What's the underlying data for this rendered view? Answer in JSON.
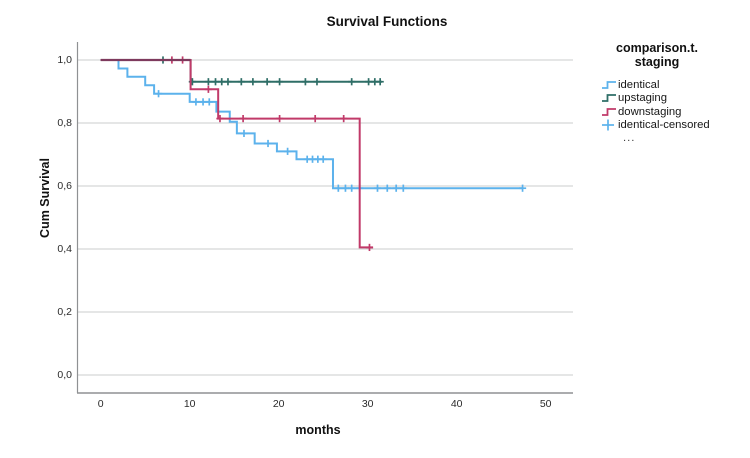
{
  "figure_title": "Survival Functions",
  "axes": {
    "x_label": "months",
    "y_label": "Cum Survival"
  },
  "legend": {
    "title_line1": "comparison.t.",
    "title_line2": "staging",
    "entries": [
      {
        "label": "identical",
        "marker": "step",
        "color": "#5cb2ec"
      },
      {
        "label": "upstaging",
        "marker": "step",
        "color": "#2f6e67"
      },
      {
        "label": "downstaging",
        "marker": "step",
        "color": "#c13a69"
      },
      {
        "label": "identical-censored",
        "marker": "plus",
        "color": "#5cb2ec"
      },
      {
        "label": "...",
        "marker": "none",
        "color": "#3a3a3a"
      }
    ]
  },
  "chart_data": {
    "type": "line",
    "subtype": "kaplan-meier-step",
    "title": "Survival Functions",
    "xlabel": "months",
    "ylabel": "Cum Survival",
    "xlim": [
      -2.7,
      53.3
    ],
    "ylim": [
      0,
      1.05
    ],
    "grid": "horizontal-only",
    "legend_position": "right",
    "legend_title": [
      "comparison.t.",
      "staging"
    ],
    "x_ticks": [
      0,
      10,
      20,
      30,
      40,
      50
    ],
    "x_tick_labels": [
      "0",
      "10",
      "20",
      "30",
      "40",
      "50"
    ],
    "y_ticks": [
      0,
      0.2,
      0.4,
      0.6,
      0.8,
      1.0
    ],
    "y_tick_labels": [
      "0,0",
      "0,2",
      "0,4",
      "0,6",
      "0,8",
      "1,0"
    ],
    "series": [
      {
        "name": "identical",
        "color": "#5cb2ec",
        "steps": [
          [
            0,
            1.0
          ],
          [
            2,
            0.973
          ],
          [
            3,
            0.947
          ],
          [
            5,
            0.92
          ],
          [
            6,
            0.893
          ],
          [
            10,
            0.867
          ],
          [
            13,
            0.836
          ],
          [
            14.5,
            0.804
          ],
          [
            15.3,
            0.767
          ],
          [
            17.3,
            0.735
          ],
          [
            19.8,
            0.71
          ],
          [
            22,
            0.685
          ],
          [
            26.1,
            0.593
          ]
        ],
        "end_time": 47.5,
        "censored": [
          [
            6.5,
            0.893
          ],
          [
            10.7,
            0.867
          ],
          [
            11.5,
            0.867
          ],
          [
            12.2,
            0.867
          ],
          [
            16.1,
            0.767
          ],
          [
            18.8,
            0.735
          ],
          [
            21,
            0.71
          ],
          [
            23.2,
            0.685
          ],
          [
            23.8,
            0.685
          ],
          [
            24.4,
            0.685
          ],
          [
            25,
            0.685
          ],
          [
            26.7,
            0.593
          ],
          [
            27.5,
            0.593
          ],
          [
            28.2,
            0.593
          ],
          [
            29.1,
            0.593
          ],
          [
            31.1,
            0.593
          ],
          [
            32.2,
            0.593
          ],
          [
            33.2,
            0.593
          ],
          [
            34,
            0.593
          ],
          [
            47.4,
            0.593
          ]
        ]
      },
      {
        "name": "upstaging",
        "color": "#2f6e67",
        "steps": [
          [
            0,
            1.0
          ],
          [
            10.1,
            0.931
          ]
        ],
        "end_time": 31.6,
        "censored": [
          [
            7,
            1.0
          ],
          [
            10.3,
            0.931
          ],
          [
            12.1,
            0.931
          ],
          [
            12.9,
            0.931
          ],
          [
            13.6,
            0.931
          ],
          [
            14.3,
            0.931
          ],
          [
            15.8,
            0.931
          ],
          [
            17.1,
            0.931
          ],
          [
            18.7,
            0.931
          ],
          [
            20.1,
            0.931
          ],
          [
            23,
            0.931
          ],
          [
            24.3,
            0.931
          ],
          [
            28.2,
            0.931
          ],
          [
            30.1,
            0.931
          ],
          [
            30.8,
            0.931
          ],
          [
            31.4,
            0.931
          ]
        ]
      },
      {
        "name": "downstaging",
        "color": "#c13a69",
        "steps": [
          [
            0,
            1.0
          ],
          [
            10.1,
            0.907
          ],
          [
            13.2,
            0.814
          ],
          [
            29.1,
            0.405
          ]
        ],
        "end_time": 30.6,
        "censored": [
          [
            8,
            1.0
          ],
          [
            9.2,
            1.0
          ],
          [
            12.1,
            0.907
          ],
          [
            13.4,
            0.814
          ],
          [
            16,
            0.814
          ],
          [
            20.1,
            0.814
          ],
          [
            24.1,
            0.814
          ],
          [
            27.3,
            0.814
          ],
          [
            30.2,
            0.405
          ]
        ]
      }
    ],
    "overlap_segment": {
      "series": [
        "upstaging",
        "downstaging"
      ],
      "from": 0,
      "to": 10.1,
      "value": 1.0,
      "color": "#7e3a5d"
    }
  }
}
